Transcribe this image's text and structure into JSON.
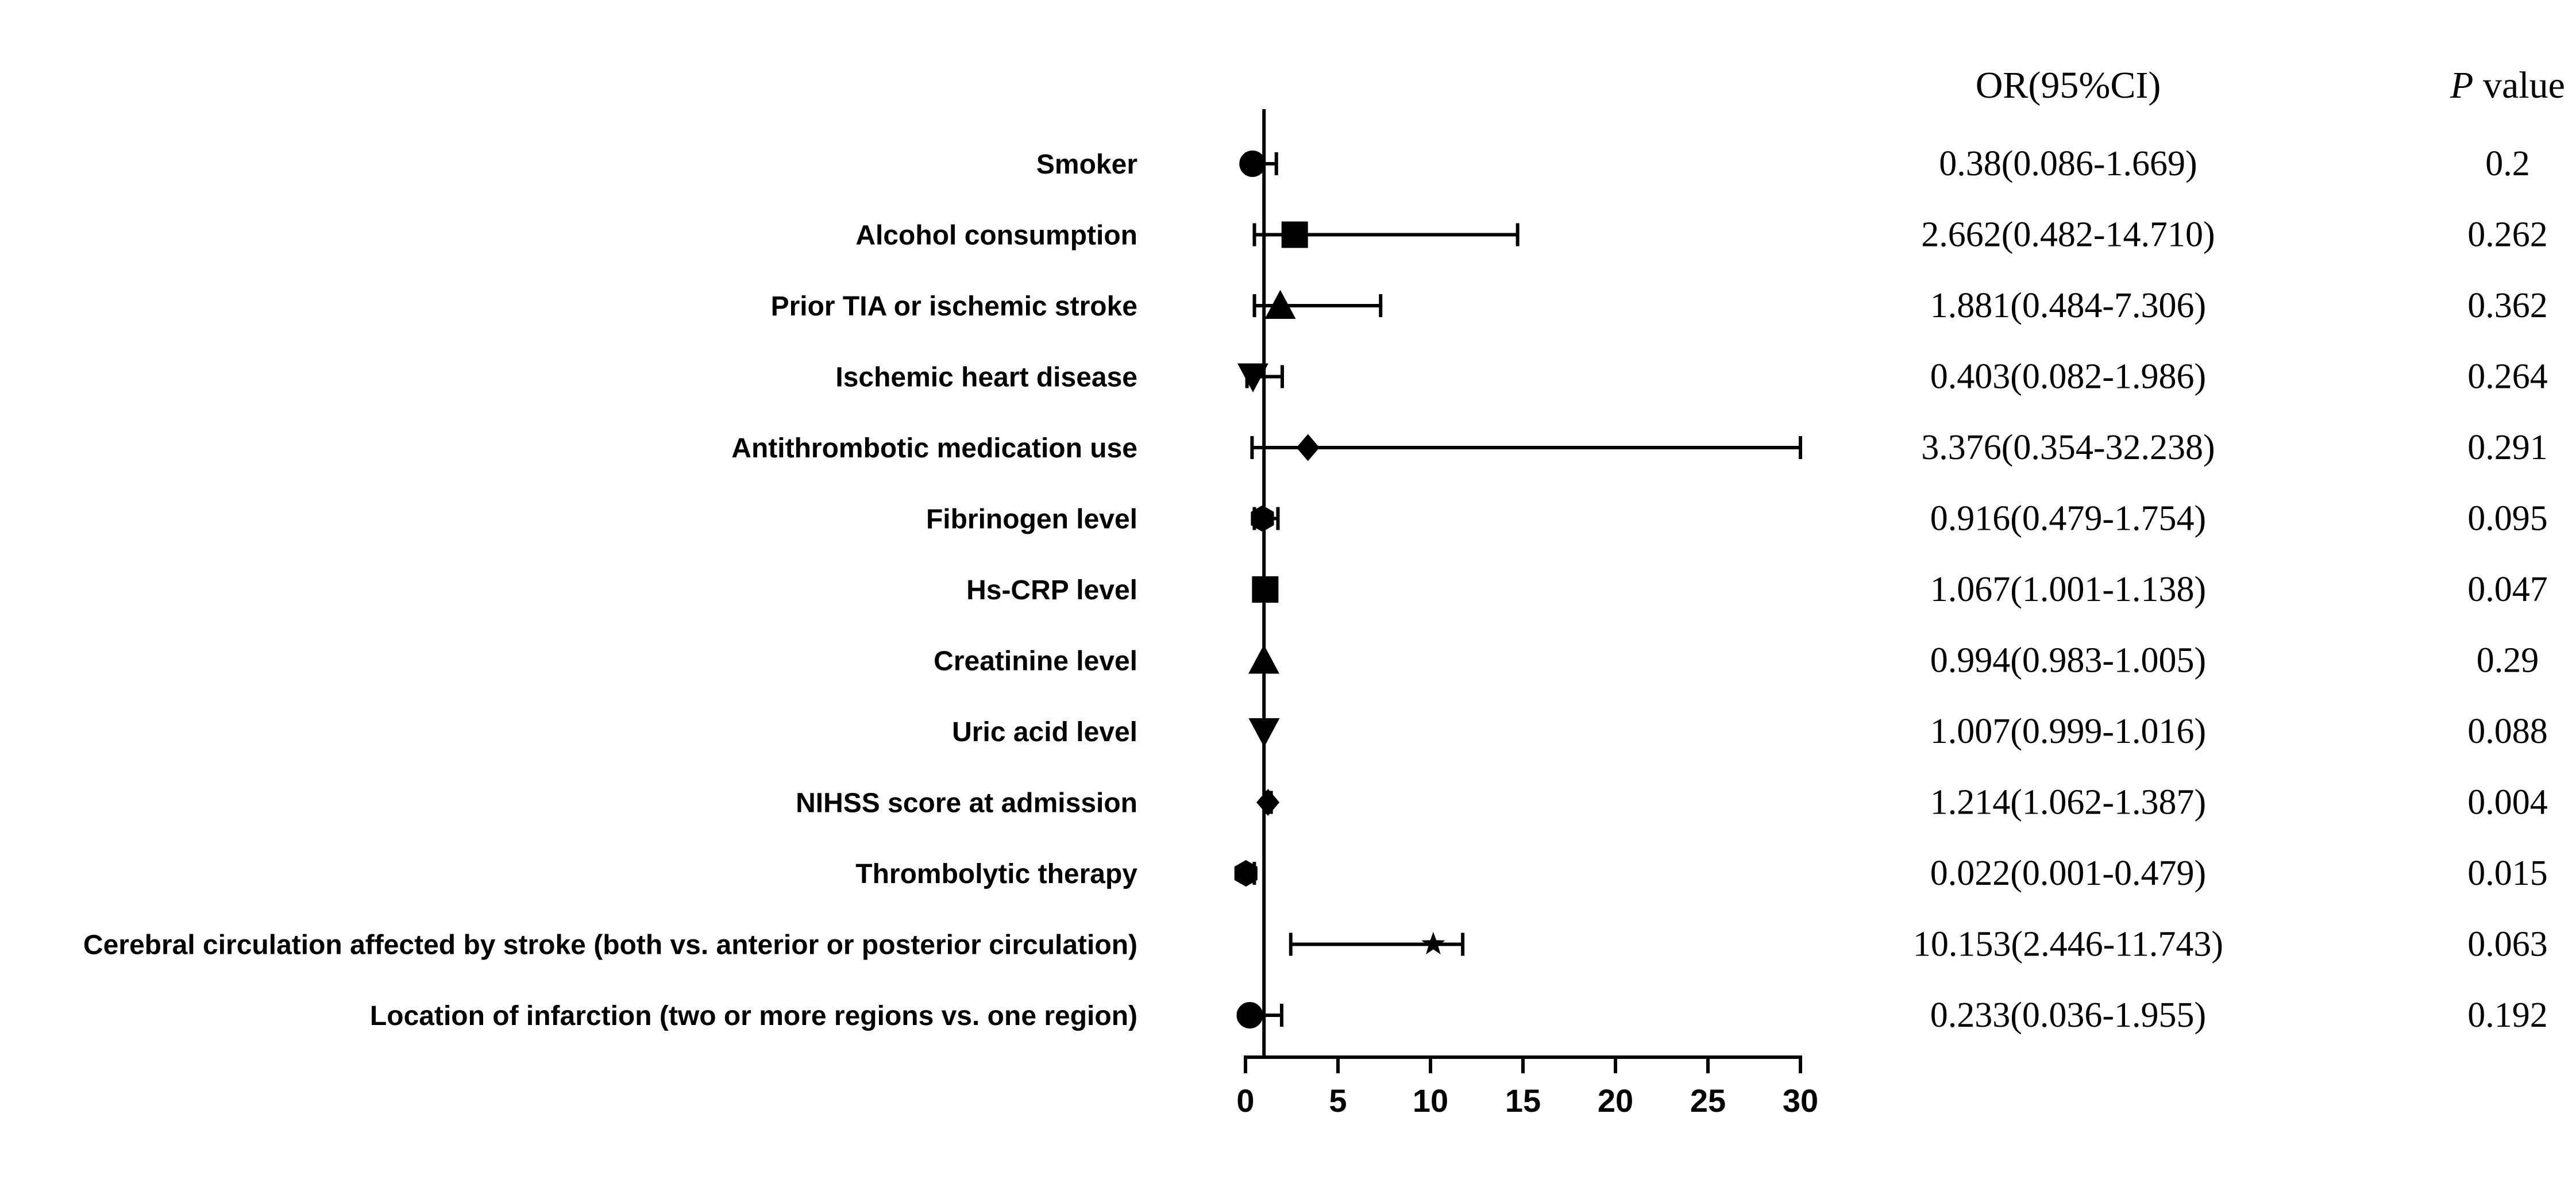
{
  "chart_data": {
    "type": "forest",
    "xlim": [
      0,
      30
    ],
    "xticks": [
      "0",
      "5",
      "10",
      "15",
      "20",
      "25",
      "30"
    ],
    "reference_line": 1,
    "grid": false,
    "headers": {
      "or": "OR(95%CI)",
      "p_italic": "P",
      "p_rest": " value"
    },
    "rows": [
      {
        "label": "Smoker",
        "or": 0.38,
        "lo": 0.086,
        "hi": 1.669,
        "or_text": "0.38(0.086-1.669)",
        "p_text": "0.2",
        "marker": "circle"
      },
      {
        "label": "Alcohol consumption",
        "or": 2.662,
        "lo": 0.482,
        "hi": 14.71,
        "or_text": "2.662(0.482-14.710)",
        "p_text": "0.262",
        "marker": "square"
      },
      {
        "label": "Prior TIA or ischemic stroke",
        "or": 1.881,
        "lo": 0.484,
        "hi": 7.306,
        "or_text": "1.881(0.484-7.306)",
        "p_text": "0.362",
        "marker": "triangle-up"
      },
      {
        "label": "Ischemic heart disease",
        "or": 0.403,
        "lo": 0.082,
        "hi": 1.986,
        "or_text": "0.403(0.082-1.986)",
        "p_text": "0.264",
        "marker": "triangle-down"
      },
      {
        "label": "Antithrombotic medication use",
        "or": 3.376,
        "lo": 0.354,
        "hi": 32.238,
        "or_text": "3.376(0.354-32.238)",
        "p_text": "0.291",
        "marker": "diamond"
      },
      {
        "label": "Fibrinogen level",
        "or": 0.916,
        "lo": 0.479,
        "hi": 1.754,
        "or_text": "0.916(0.479-1.754)",
        "p_text": "0.095",
        "marker": "hexagon"
      },
      {
        "label": "Hs-CRP level",
        "or": 1.067,
        "lo": 1.001,
        "hi": 1.138,
        "or_text": "1.067(1.001-1.138)",
        "p_text": "0.047",
        "marker": "square"
      },
      {
        "label": "Creatinine level",
        "or": 0.994,
        "lo": 0.983,
        "hi": 1.005,
        "or_text": "0.994(0.983-1.005)",
        "p_text": "0.29",
        "marker": "triangle-up"
      },
      {
        "label": "Uric acid level",
        "or": 1.007,
        "lo": 0.999,
        "hi": 1.016,
        "or_text": "1.007(0.999-1.016)",
        "p_text": "0.088",
        "marker": "triangle-down"
      },
      {
        "label": "NIHSS score at admission",
        "or": 1.214,
        "lo": 1.062,
        "hi": 1.387,
        "or_text": "1.214(1.062-1.387)",
        "p_text": "0.004",
        "marker": "diamond"
      },
      {
        "label": "Thrombolytic therapy",
        "or": 0.022,
        "lo": 0.001,
        "hi": 0.479,
        "or_text": "0.022(0.001-0.479)",
        "p_text": "0.015",
        "marker": "hexagon"
      },
      {
        "label": "Cerebral circulation affected by stroke (both vs. anterior or posterior circulation)",
        "or": 10.153,
        "lo": 2.446,
        "hi": 11.743,
        "or_text": "10.153(2.446-11.743)",
        "p_text": "0.063",
        "marker": "star"
      },
      {
        "label": "Location of infarction (two or more regions vs. one region)",
        "or": 0.233,
        "lo": 0.036,
        "hi": 1.955,
        "or_text": "0.233(0.036-1.955)",
        "p_text": "0.192",
        "marker": "circle"
      }
    ],
    "colors": {
      "ink": "#000000",
      "background": "#ffffff"
    }
  }
}
